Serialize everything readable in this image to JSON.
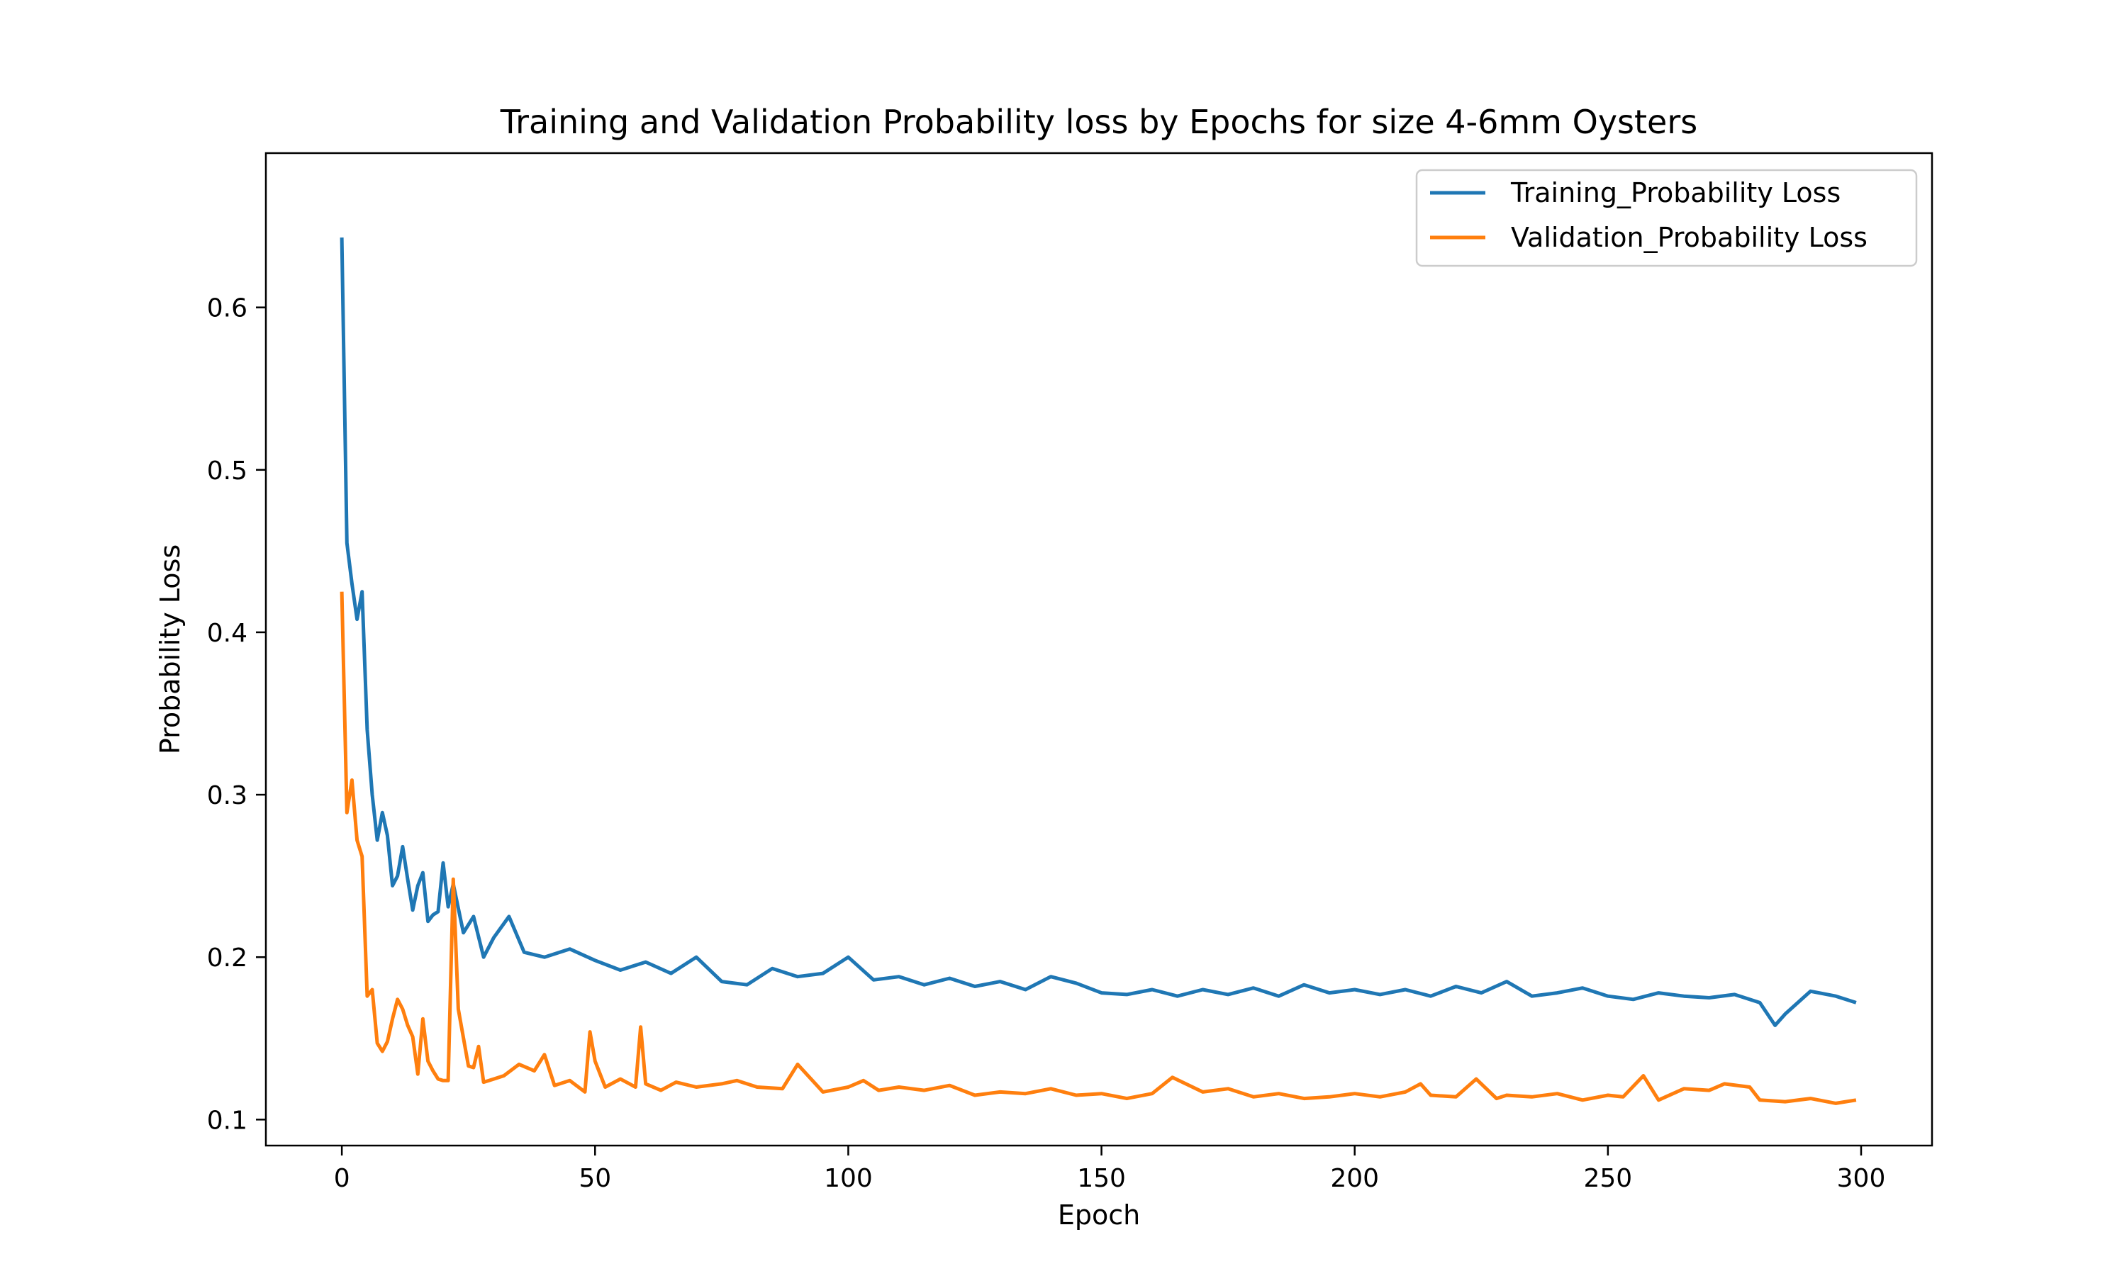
{
  "chart_data": {
    "type": "line",
    "title": "Training and Validation Probability loss by Epochs for size 4-6mm Oysters",
    "xlabel": "Epoch",
    "ylabel": "Probability Loss",
    "xlim": [
      -15,
      314
    ],
    "ylim": [
      0.084,
      0.695
    ],
    "xticks": [
      0,
      50,
      100,
      150,
      200,
      250,
      300
    ],
    "yticks": [
      0.1,
      0.2,
      0.3,
      0.4,
      0.5,
      0.6
    ],
    "xtick_labels": [
      "0",
      "50",
      "100",
      "150",
      "200",
      "250",
      "300"
    ],
    "ytick_labels": [
      "0.1",
      "0.2",
      "0.3",
      "0.4",
      "0.5",
      "0.6"
    ],
    "grid": false,
    "legend_position": "top-right",
    "series": [
      {
        "name": "Training_Probability Loss",
        "color": "#1f77b4",
        "x": [
          0,
          1,
          2,
          3,
          4,
          5,
          6,
          7,
          8,
          9,
          10,
          11,
          12,
          13,
          14,
          15,
          16,
          17,
          18,
          19,
          20,
          21,
          22,
          24,
          26,
          28,
          30,
          33,
          36,
          40,
          45,
          50,
          55,
          60,
          65,
          70,
          75,
          80,
          85,
          90,
          95,
          100,
          105,
          110,
          115,
          120,
          125,
          130,
          135,
          140,
          145,
          150,
          155,
          160,
          165,
          170,
          175,
          180,
          185,
          190,
          195,
          200,
          205,
          210,
          215,
          220,
          225,
          230,
          235,
          240,
          245,
          250,
          255,
          260,
          265,
          270,
          275,
          280,
          283,
          285,
          290,
          295,
          299
        ],
        "y": [
          0.643,
          0.455,
          0.43,
          0.408,
          0.425,
          0.34,
          0.3,
          0.272,
          0.289,
          0.275,
          0.244,
          0.25,
          0.268,
          0.248,
          0.229,
          0.244,
          0.252,
          0.222,
          0.226,
          0.228,
          0.258,
          0.231,
          0.245,
          0.215,
          0.225,
          0.2,
          0.212,
          0.225,
          0.203,
          0.2,
          0.205,
          0.198,
          0.192,
          0.197,
          0.19,
          0.2,
          0.185,
          0.183,
          0.193,
          0.188,
          0.19,
          0.2,
          0.186,
          0.188,
          0.183,
          0.187,
          0.182,
          0.185,
          0.18,
          0.188,
          0.184,
          0.178,
          0.177,
          0.18,
          0.176,
          0.18,
          0.177,
          0.181,
          0.176,
          0.183,
          0.178,
          0.18,
          0.177,
          0.18,
          0.176,
          0.182,
          0.178,
          0.185,
          0.176,
          0.178,
          0.181,
          0.176,
          0.174,
          0.178,
          0.176,
          0.175,
          0.177,
          0.172,
          0.158,
          0.165,
          0.179,
          0.176,
          0.172
        ]
      },
      {
        "name": "Validation_Probability Loss",
        "color": "#ff7f0e",
        "x": [
          0,
          1,
          2,
          3,
          4,
          5,
          6,
          7,
          8,
          9,
          10,
          11,
          12,
          13,
          14,
          15,
          16,
          17,
          18,
          19,
          20,
          21,
          22,
          23,
          25,
          26,
          27,
          28,
          30,
          32,
          35,
          38,
          40,
          42,
          45,
          48,
          49,
          50,
          52,
          55,
          58,
          59,
          60,
          63,
          66,
          70,
          75,
          78,
          82,
          87,
          90,
          95,
          100,
          103,
          106,
          110,
          115,
          120,
          125,
          130,
          135,
          140,
          145,
          150,
          155,
          160,
          164,
          168,
          170,
          175,
          180,
          185,
          190,
          195,
          200,
          205,
          210,
          213,
          215,
          220,
          224,
          228,
          230,
          235,
          240,
          245,
          250,
          253,
          257,
          260,
          265,
          270,
          273,
          278,
          280,
          285,
          290,
          295,
          299
        ],
        "y": [
          0.425,
          0.289,
          0.309,
          0.272,
          0.262,
          0.176,
          0.18,
          0.147,
          0.142,
          0.148,
          0.162,
          0.174,
          0.168,
          0.158,
          0.151,
          0.128,
          0.162,
          0.136,
          0.13,
          0.125,
          0.124,
          0.124,
          0.248,
          0.168,
          0.133,
          0.132,
          0.145,
          0.123,
          0.125,
          0.127,
          0.134,
          0.13,
          0.14,
          0.121,
          0.124,
          0.117,
          0.154,
          0.136,
          0.12,
          0.125,
          0.12,
          0.157,
          0.122,
          0.118,
          0.123,
          0.12,
          0.122,
          0.124,
          0.12,
          0.119,
          0.134,
          0.117,
          0.12,
          0.124,
          0.118,
          0.12,
          0.118,
          0.121,
          0.115,
          0.117,
          0.116,
          0.119,
          0.115,
          0.116,
          0.113,
          0.116,
          0.126,
          0.12,
          0.117,
          0.119,
          0.114,
          0.116,
          0.113,
          0.114,
          0.116,
          0.114,
          0.117,
          0.122,
          0.115,
          0.114,
          0.125,
          0.113,
          0.115,
          0.114,
          0.116,
          0.112,
          0.115,
          0.114,
          0.127,
          0.112,
          0.119,
          0.118,
          0.122,
          0.12,
          0.112,
          0.111,
          0.113,
          0.11,
          0.112
        ]
      }
    ]
  }
}
